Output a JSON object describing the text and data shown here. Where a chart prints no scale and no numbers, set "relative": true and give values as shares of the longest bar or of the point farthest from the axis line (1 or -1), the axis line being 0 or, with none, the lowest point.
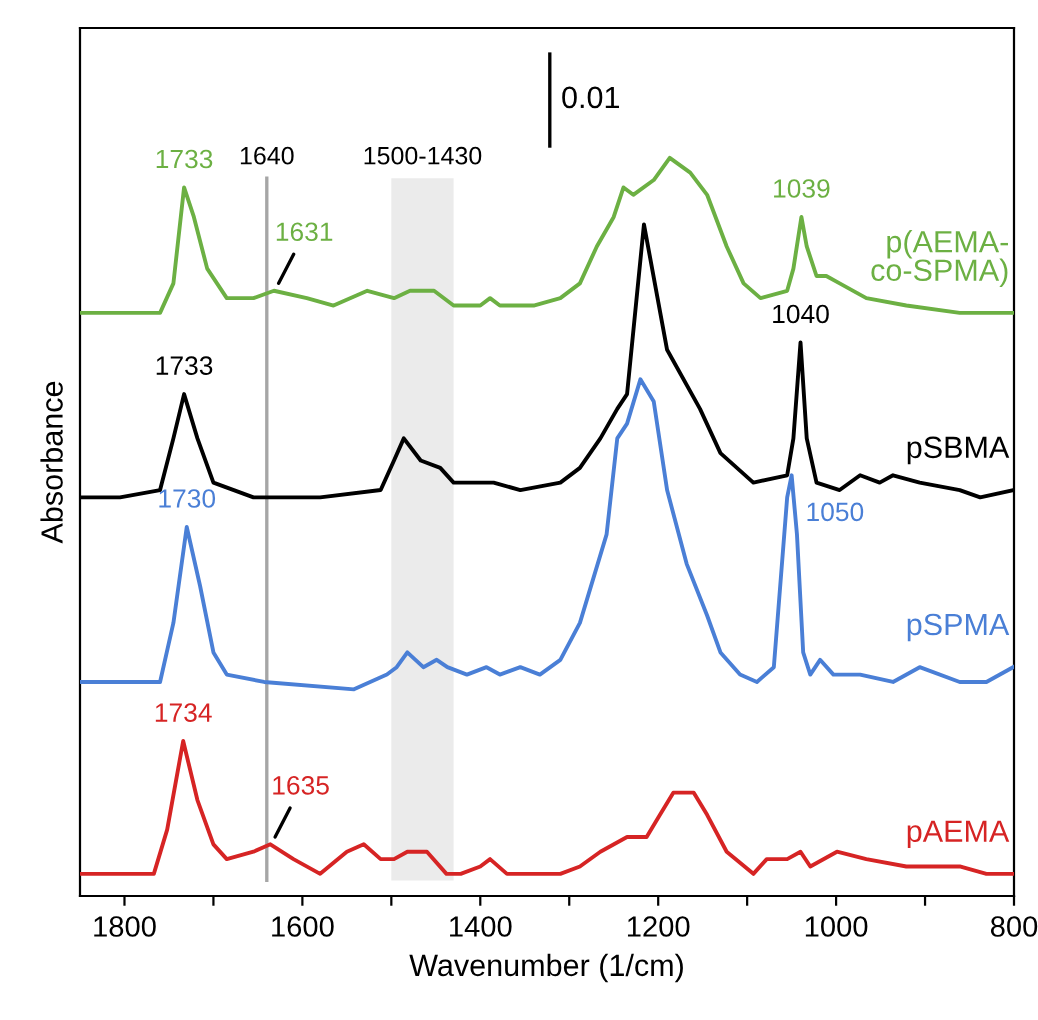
{
  "chart_data": {
    "type": "line",
    "relative": true,
    "xlabel": "Wavenumber (1/cm)",
    "ylabel": "Absorbance",
    "xlim": [
      1850,
      800
    ],
    "xticks": [
      1800,
      {
        "value": 1700,
        "label": null
      },
      1600,
      {
        "value": 1500,
        "label": null
      },
      1400,
      {
        "value": 1300,
        "label": null
      },
      1200,
      {
        "value": 1100,
        "label": null
      },
      1000,
      {
        "value": 900,
        "label": null
      },
      800
    ],
    "tick_labels": "x",
    "marker": "none",
    "line_style": "solid",
    "series": [
      {
        "name": "p(AEMA-\nco-SPMA)",
        "color": "#6cb043",
        "x": [
          1850,
          1805,
          1760,
          1745,
          1733,
          1722,
          1707,
          1685,
          1655,
          1632,
          1595,
          1565,
          1527,
          1497,
          1479,
          1452,
          1430,
          1400,
          1389,
          1378,
          1340,
          1310,
          1288,
          1269,
          1250,
          1239,
          1228,
          1205,
          1187,
          1164,
          1145,
          1123,
          1104,
          1085,
          1055,
          1048,
          1039,
          1033,
          1022,
          1011,
          996,
          966,
          921,
          861,
          800
        ],
        "values": [
          0.79,
          0.79,
          0.79,
          0.83,
          0.96,
          0.92,
          0.85,
          0.81,
          0.81,
          0.82,
          0.81,
          0.8,
          0.82,
          0.81,
          0.82,
          0.82,
          0.8,
          0.8,
          0.81,
          0.8,
          0.8,
          0.81,
          0.83,
          0.88,
          0.92,
          0.96,
          0.95,
          0.97,
          1.0,
          0.98,
          0.95,
          0.88,
          0.83,
          0.81,
          0.82,
          0.85,
          0.92,
          0.88,
          0.84,
          0.84,
          0.83,
          0.81,
          0.8,
          0.79,
          0.79
        ]
      },
      {
        "name": "pSBMA",
        "color": "#000000",
        "x": [
          1850,
          1805,
          1760,
          1745,
          1733,
          1718,
          1700,
          1655,
          1580,
          1512,
          1497,
          1486,
          1467,
          1445,
          1430,
          1400,
          1385,
          1355,
          1310,
          1288,
          1265,
          1246,
          1235,
          1216,
          1190,
          1153,
          1130,
          1093,
          1055,
          1048,
          1040,
          1033,
          1022,
          996,
          973,
          951,
          936,
          906,
          861,
          838,
          800
        ],
        "values": [
          0.54,
          0.54,
          0.55,
          0.62,
          0.68,
          0.62,
          0.56,
          0.54,
          0.54,
          0.55,
          0.59,
          0.62,
          0.59,
          0.58,
          0.56,
          0.56,
          0.56,
          0.55,
          0.56,
          0.58,
          0.62,
          0.66,
          0.68,
          0.91,
          0.74,
          0.66,
          0.6,
          0.56,
          0.57,
          0.62,
          0.75,
          0.62,
          0.56,
          0.55,
          0.57,
          0.56,
          0.57,
          0.56,
          0.55,
          0.54,
          0.55
        ]
      },
      {
        "name": "pSPMA",
        "color": "#4a7fd6",
        "x": [
          1850,
          1804,
          1760,
          1745,
          1730,
          1715,
          1700,
          1685,
          1643,
          1542,
          1505,
          1494,
          1482,
          1464,
          1449,
          1437,
          1415,
          1393,
          1378,
          1355,
          1333,
          1310,
          1288,
          1273,
          1258,
          1246,
          1235,
          1220,
          1205,
          1190,
          1168,
          1145,
          1130,
          1108,
          1089,
          1070,
          1055,
          1050,
          1044,
          1037,
          1029,
          1018,
          1003,
          973,
          936,
          906,
          861,
          831,
          801
        ],
        "values": [
          0.29,
          0.29,
          0.29,
          0.37,
          0.5,
          0.42,
          0.33,
          0.3,
          0.29,
          0.28,
          0.3,
          0.31,
          0.33,
          0.31,
          0.32,
          0.31,
          0.3,
          0.31,
          0.3,
          0.31,
          0.3,
          0.32,
          0.37,
          0.43,
          0.49,
          0.62,
          0.64,
          0.7,
          0.67,
          0.55,
          0.45,
          0.38,
          0.33,
          0.3,
          0.29,
          0.31,
          0.54,
          0.57,
          0.49,
          0.33,
          0.3,
          0.32,
          0.3,
          0.3,
          0.29,
          0.31,
          0.29,
          0.29,
          0.31
        ]
      },
      {
        "name": "pAEMA",
        "color": "#d62424",
        "x": [
          1850,
          1804,
          1767,
          1752,
          1734,
          1718,
          1700,
          1685,
          1655,
          1636,
          1610,
          1580,
          1550,
          1531,
          1512,
          1497,
          1482,
          1460,
          1438,
          1422,
          1400,
          1389,
          1370,
          1340,
          1310,
          1288,
          1265,
          1235,
          1213,
          1198,
          1183,
          1160,
          1145,
          1123,
          1093,
          1078,
          1055,
          1040,
          1029,
          999,
          966,
          921,
          861,
          831,
          801
        ],
        "values": [
          0.03,
          0.03,
          0.03,
          0.09,
          0.21,
          0.13,
          0.07,
          0.05,
          0.06,
          0.07,
          0.05,
          0.03,
          0.06,
          0.07,
          0.05,
          0.05,
          0.06,
          0.06,
          0.03,
          0.03,
          0.04,
          0.05,
          0.03,
          0.03,
          0.03,
          0.04,
          0.06,
          0.08,
          0.08,
          0.11,
          0.14,
          0.14,
          0.11,
          0.06,
          0.03,
          0.05,
          0.05,
          0.06,
          0.04,
          0.06,
          0.05,
          0.04,
          0.04,
          0.03,
          0.03
        ]
      }
    ],
    "ref_lines": [
      {
        "axis": "x",
        "value": 1640,
        "label": "1640",
        "color": "#a6a6a6"
      }
    ],
    "bands": [
      {
        "axis": "x",
        "from": 1500,
        "to": 1430,
        "label": "1500-1430",
        "color": "#ebebeb"
      }
    ],
    "annotations": [
      "0.01",
      {
        "text": "1733",
        "x": 1733,
        "y": 0.96
      },
      {
        "text": "1631",
        "x": 1631,
        "y": 0.82
      },
      {
        "text": "1039",
        "x": 1039,
        "y": 0.92
      },
      {
        "text": "1733",
        "x": 1733,
        "y": 0.68
      },
      {
        "text": "1040",
        "x": 1040,
        "y": 0.75
      },
      {
        "text": "1730",
        "x": 1730,
        "y": 0.5
      },
      {
        "text": "1050",
        "x": 1050,
        "y": 0.57
      },
      {
        "text": "1734",
        "x": 1734,
        "y": 0.21
      },
      {
        "text": "1635",
        "x": 1635,
        "y": 0.07
      }
    ]
  }
}
